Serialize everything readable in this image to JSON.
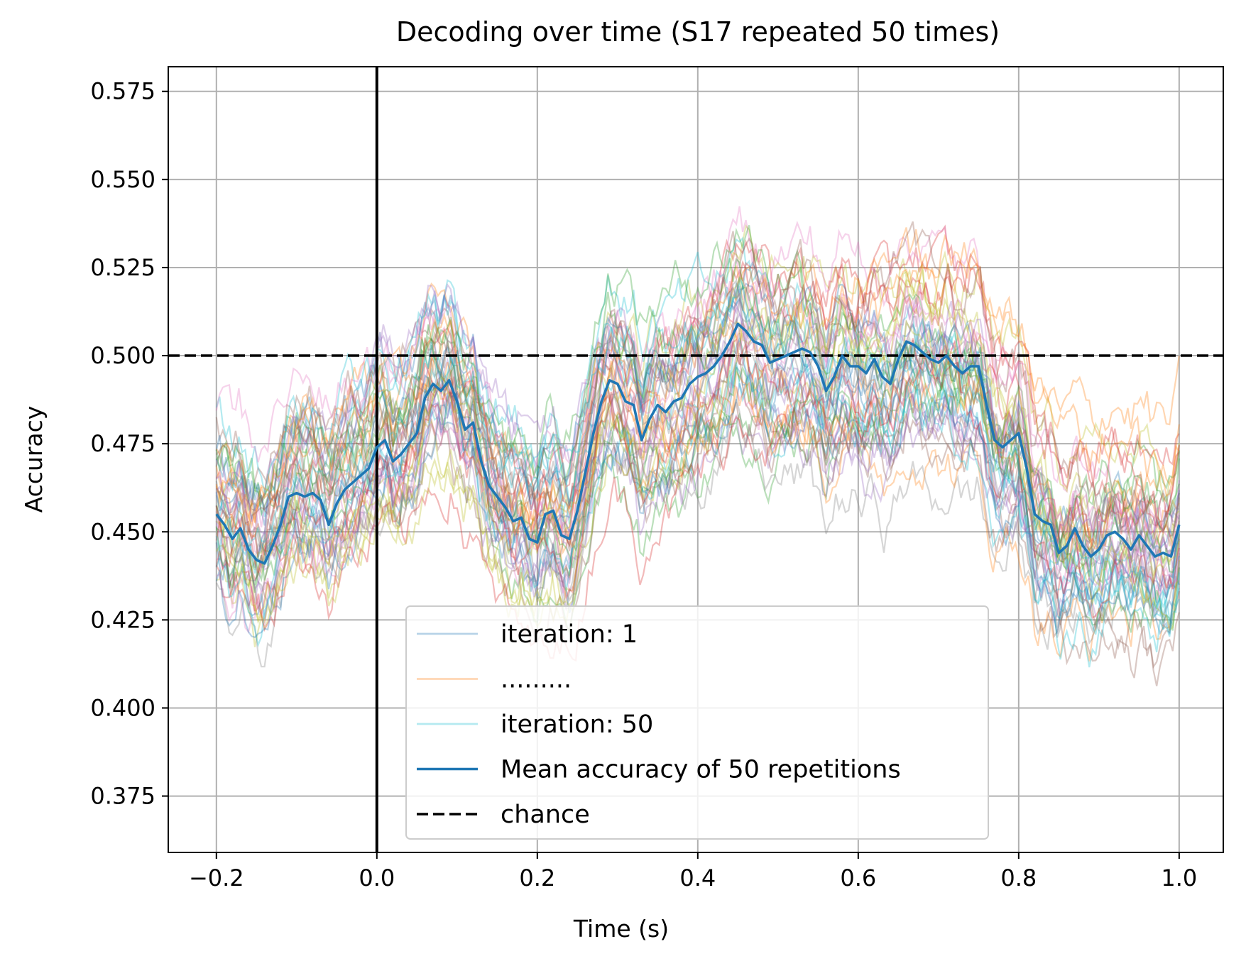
{
  "chart_data": {
    "type": "line",
    "title": "Decoding over time (S17 repeated 50 times)",
    "xlabel": "Time (s)",
    "ylabel": "Accuracy",
    "xlim": [
      -0.26,
      1.055
    ],
    "ylim": [
      0.359,
      0.582
    ],
    "xticks": [
      -0.2,
      0.0,
      0.2,
      0.4,
      0.6,
      0.8,
      1.0
    ],
    "xtick_labels": [
      "−0.2",
      "0.0",
      "0.2",
      "0.4",
      "0.6",
      "0.8",
      "1.0"
    ],
    "yticks": [
      0.375,
      0.4,
      0.425,
      0.45,
      0.475,
      0.5,
      0.525,
      0.55,
      0.575
    ],
    "ytick_labels": [
      "0.375",
      "0.400",
      "0.425",
      "0.450",
      "0.475",
      "0.500",
      "0.525",
      "0.550",
      "0.575"
    ],
    "grid": true,
    "legend_position": "lower-center",
    "colors": {
      "mean": "#1f77b4",
      "chance": "#000000",
      "iterations": [
        "#1f77b4",
        "#ff7f0e",
        "#2ca02c",
        "#d62728",
        "#9467bd",
        "#8c564b",
        "#e377c2",
        "#7f7f7f",
        "#bcbd22",
        "#17becf"
      ]
    },
    "iteration_count": 50,
    "legend": [
      {
        "label": "iteration: 1",
        "color": "#1f77b4",
        "style": "faint"
      },
      {
        "label": ".........",
        "color": "#ff7f0e",
        "style": "faint"
      },
      {
        "label": "iteration: 50",
        "color": "#17becf",
        "style": "faint"
      },
      {
        "label": "Mean accuracy of 50 repetitions",
        "color": "#1f77b4",
        "style": "solid"
      },
      {
        "label": "chance",
        "color": "#000000",
        "style": "dashed"
      }
    ],
    "chance_level": 0.5,
    "onset_x": 0.0,
    "mean_series": {
      "name": "Mean accuracy of 50 repetitions",
      "x": [
        -0.2,
        -0.19,
        -0.18,
        -0.17,
        -0.16,
        -0.15,
        -0.14,
        -0.13,
        -0.12,
        -0.11,
        -0.1,
        -0.09,
        -0.08,
        -0.07,
        -0.06,
        -0.05,
        -0.04,
        -0.03,
        -0.02,
        -0.01,
        0.0,
        0.01,
        0.02,
        0.03,
        0.04,
        0.05,
        0.06,
        0.07,
        0.08,
        0.09,
        0.1,
        0.11,
        0.12,
        0.13,
        0.14,
        0.15,
        0.16,
        0.17,
        0.18,
        0.19,
        0.2,
        0.21,
        0.22,
        0.23,
        0.24,
        0.25,
        0.26,
        0.27,
        0.28,
        0.29,
        0.3,
        0.31,
        0.32,
        0.33,
        0.34,
        0.35,
        0.36,
        0.37,
        0.38,
        0.39,
        0.4,
        0.41,
        0.42,
        0.43,
        0.44,
        0.45,
        0.46,
        0.47,
        0.48,
        0.49,
        0.5,
        0.51,
        0.52,
        0.53,
        0.54,
        0.55,
        0.56,
        0.57,
        0.58,
        0.59,
        0.6,
        0.61,
        0.62,
        0.63,
        0.64,
        0.65,
        0.66,
        0.67,
        0.68,
        0.69,
        0.7,
        0.71,
        0.72,
        0.73,
        0.74,
        0.75,
        0.76,
        0.77,
        0.78,
        0.79,
        0.8,
        0.81,
        0.82,
        0.83,
        0.84,
        0.85,
        0.86,
        0.87,
        0.88,
        0.89,
        0.9,
        0.91,
        0.92,
        0.93,
        0.94,
        0.95,
        0.96,
        0.97,
        0.98,
        0.99,
        1.0
      ],
      "y": [
        0.455,
        0.452,
        0.448,
        0.451,
        0.445,
        0.442,
        0.441,
        0.446,
        0.452,
        0.46,
        0.461,
        0.46,
        0.461,
        0.459,
        0.452,
        0.458,
        0.462,
        0.464,
        0.466,
        0.468,
        0.474,
        0.476,
        0.47,
        0.472,
        0.475,
        0.478,
        0.488,
        0.492,
        0.49,
        0.493,
        0.487,
        0.479,
        0.481,
        0.47,
        0.463,
        0.46,
        0.457,
        0.453,
        0.454,
        0.448,
        0.447,
        0.455,
        0.456,
        0.449,
        0.448,
        0.456,
        0.467,
        0.478,
        0.487,
        0.493,
        0.492,
        0.487,
        0.486,
        0.476,
        0.482,
        0.486,
        0.484,
        0.487,
        0.488,
        0.492,
        0.494,
        0.495,
        0.497,
        0.5,
        0.504,
        0.509,
        0.507,
        0.504,
        0.503,
        0.498,
        0.499,
        0.5,
        0.501,
        0.502,
        0.501,
        0.497,
        0.49,
        0.494,
        0.5,
        0.497,
        0.497,
        0.495,
        0.499,
        0.494,
        0.492,
        0.499,
        0.504,
        0.503,
        0.501,
        0.499,
        0.498,
        0.5,
        0.497,
        0.495,
        0.497,
        0.497,
        0.486,
        0.476,
        0.474,
        0.476,
        0.478,
        0.468,
        0.455,
        0.453,
        0.452,
        0.444,
        0.446,
        0.451,
        0.446,
        0.443,
        0.445,
        0.449,
        0.45,
        0.448,
        0.445,
        0.449,
        0.446,
        0.443,
        0.444,
        0.443,
        0.452
      ]
    }
  }
}
